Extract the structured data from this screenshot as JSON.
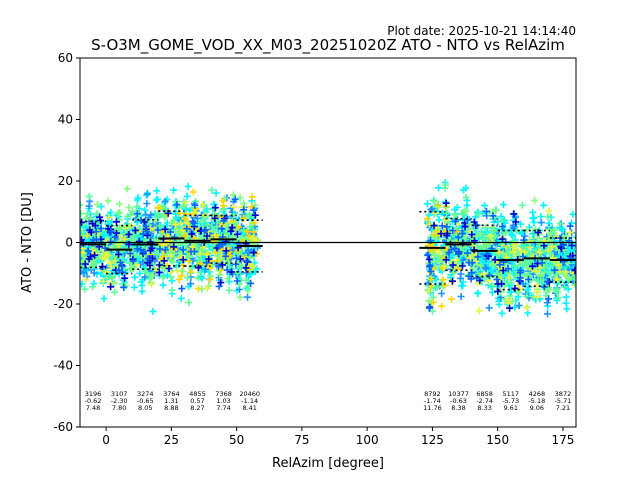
{
  "chart_data": {
    "type": "scatter",
    "plot_date": "Plot date: 2025-10-21 14:14:40",
    "title": "S-O3M_GOME_VOD_XX_M03_20251020Z ATO - NTO vs RelAzim",
    "xlabel": "RelAzim [degree]",
    "ylabel": "ATO - NTO [DU]",
    "xlim": [
      -10,
      180
    ],
    "ylim": [
      -60,
      60
    ],
    "x_ticks": [
      0,
      25,
      50,
      75,
      100,
      125,
      150,
      175
    ],
    "y_ticks": [
      -60,
      -40,
      -20,
      0,
      20,
      40,
      60
    ],
    "zero_line": 0,
    "bins": [
      {
        "x0": -10,
        "x1": 0,
        "count": "3196",
        "mean": "-0.62",
        "std": "7.48"
      },
      {
        "x0": 0,
        "x1": 10,
        "count": "3107",
        "mean": "-2.30",
        "std": "7.80"
      },
      {
        "x0": 10,
        "x1": 20,
        "count": "3274",
        "mean": "-0.65",
        "std": "8.05"
      },
      {
        "x0": 20,
        "x1": 30,
        "count": "3764",
        "mean": "1.31",
        "std": "8.88"
      },
      {
        "x0": 30,
        "x1": 40,
        "count": "4855",
        "mean": "0.57",
        "std": "8.27"
      },
      {
        "x0": 40,
        "x1": 50,
        "count": "7368",
        "mean": "1.03",
        "std": "7.74"
      },
      {
        "x0": 50,
        "x1": 60,
        "count": "20460",
        "mean": "-1.14",
        "std": "8.41"
      },
      {
        "x0": 120,
        "x1": 130,
        "count": "8792",
        "mean": "-1.74",
        "std": "11.76"
      },
      {
        "x0": 130,
        "x1": 140,
        "count": "10377",
        "mean": "-0.63",
        "std": "8.38"
      },
      {
        "x0": 140,
        "x1": 150,
        "count": "6858",
        "mean": "-2.74",
        "std": "8.33"
      },
      {
        "x0": 150,
        "x1": 160,
        "count": "5117",
        "mean": "-5.73",
        "std": "9.61"
      },
      {
        "x0": 160,
        "x1": 170,
        "count": "4268",
        "mean": "-5.18",
        "std": "9.06"
      },
      {
        "x0": 170,
        "x1": 180,
        "count": "3872",
        "mean": "-5.71",
        "std": "7.21"
      }
    ],
    "point_colors": [
      "#00f5ff",
      "#1e90ff",
      "#5dff9a",
      "#7fff80",
      "#ffd700",
      "#e6f542",
      "#0000cd",
      "#0066ff"
    ]
  }
}
